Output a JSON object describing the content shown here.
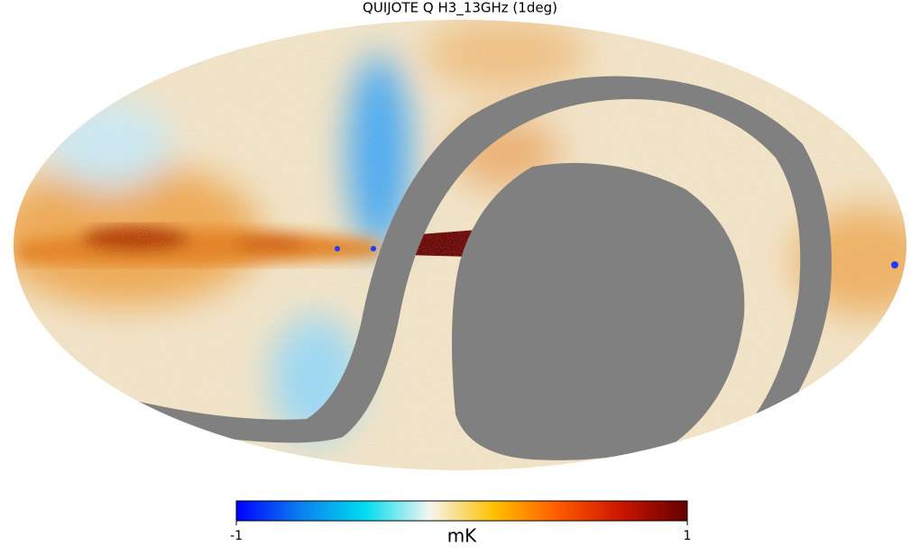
{
  "title": "QUIJOTE Q H3_13GHz (1deg)",
  "colorbar": {
    "label": "mK",
    "lim": [
      -1,
      1
    ],
    "ticks": [
      -1,
      1
    ],
    "colors": [
      "#0000ff",
      "#0a80f0",
      "#00dcf0",
      "#f5f5f0",
      "#ffc000",
      "#ff5a00",
      "#c81400",
      "#640000"
    ]
  }
}
